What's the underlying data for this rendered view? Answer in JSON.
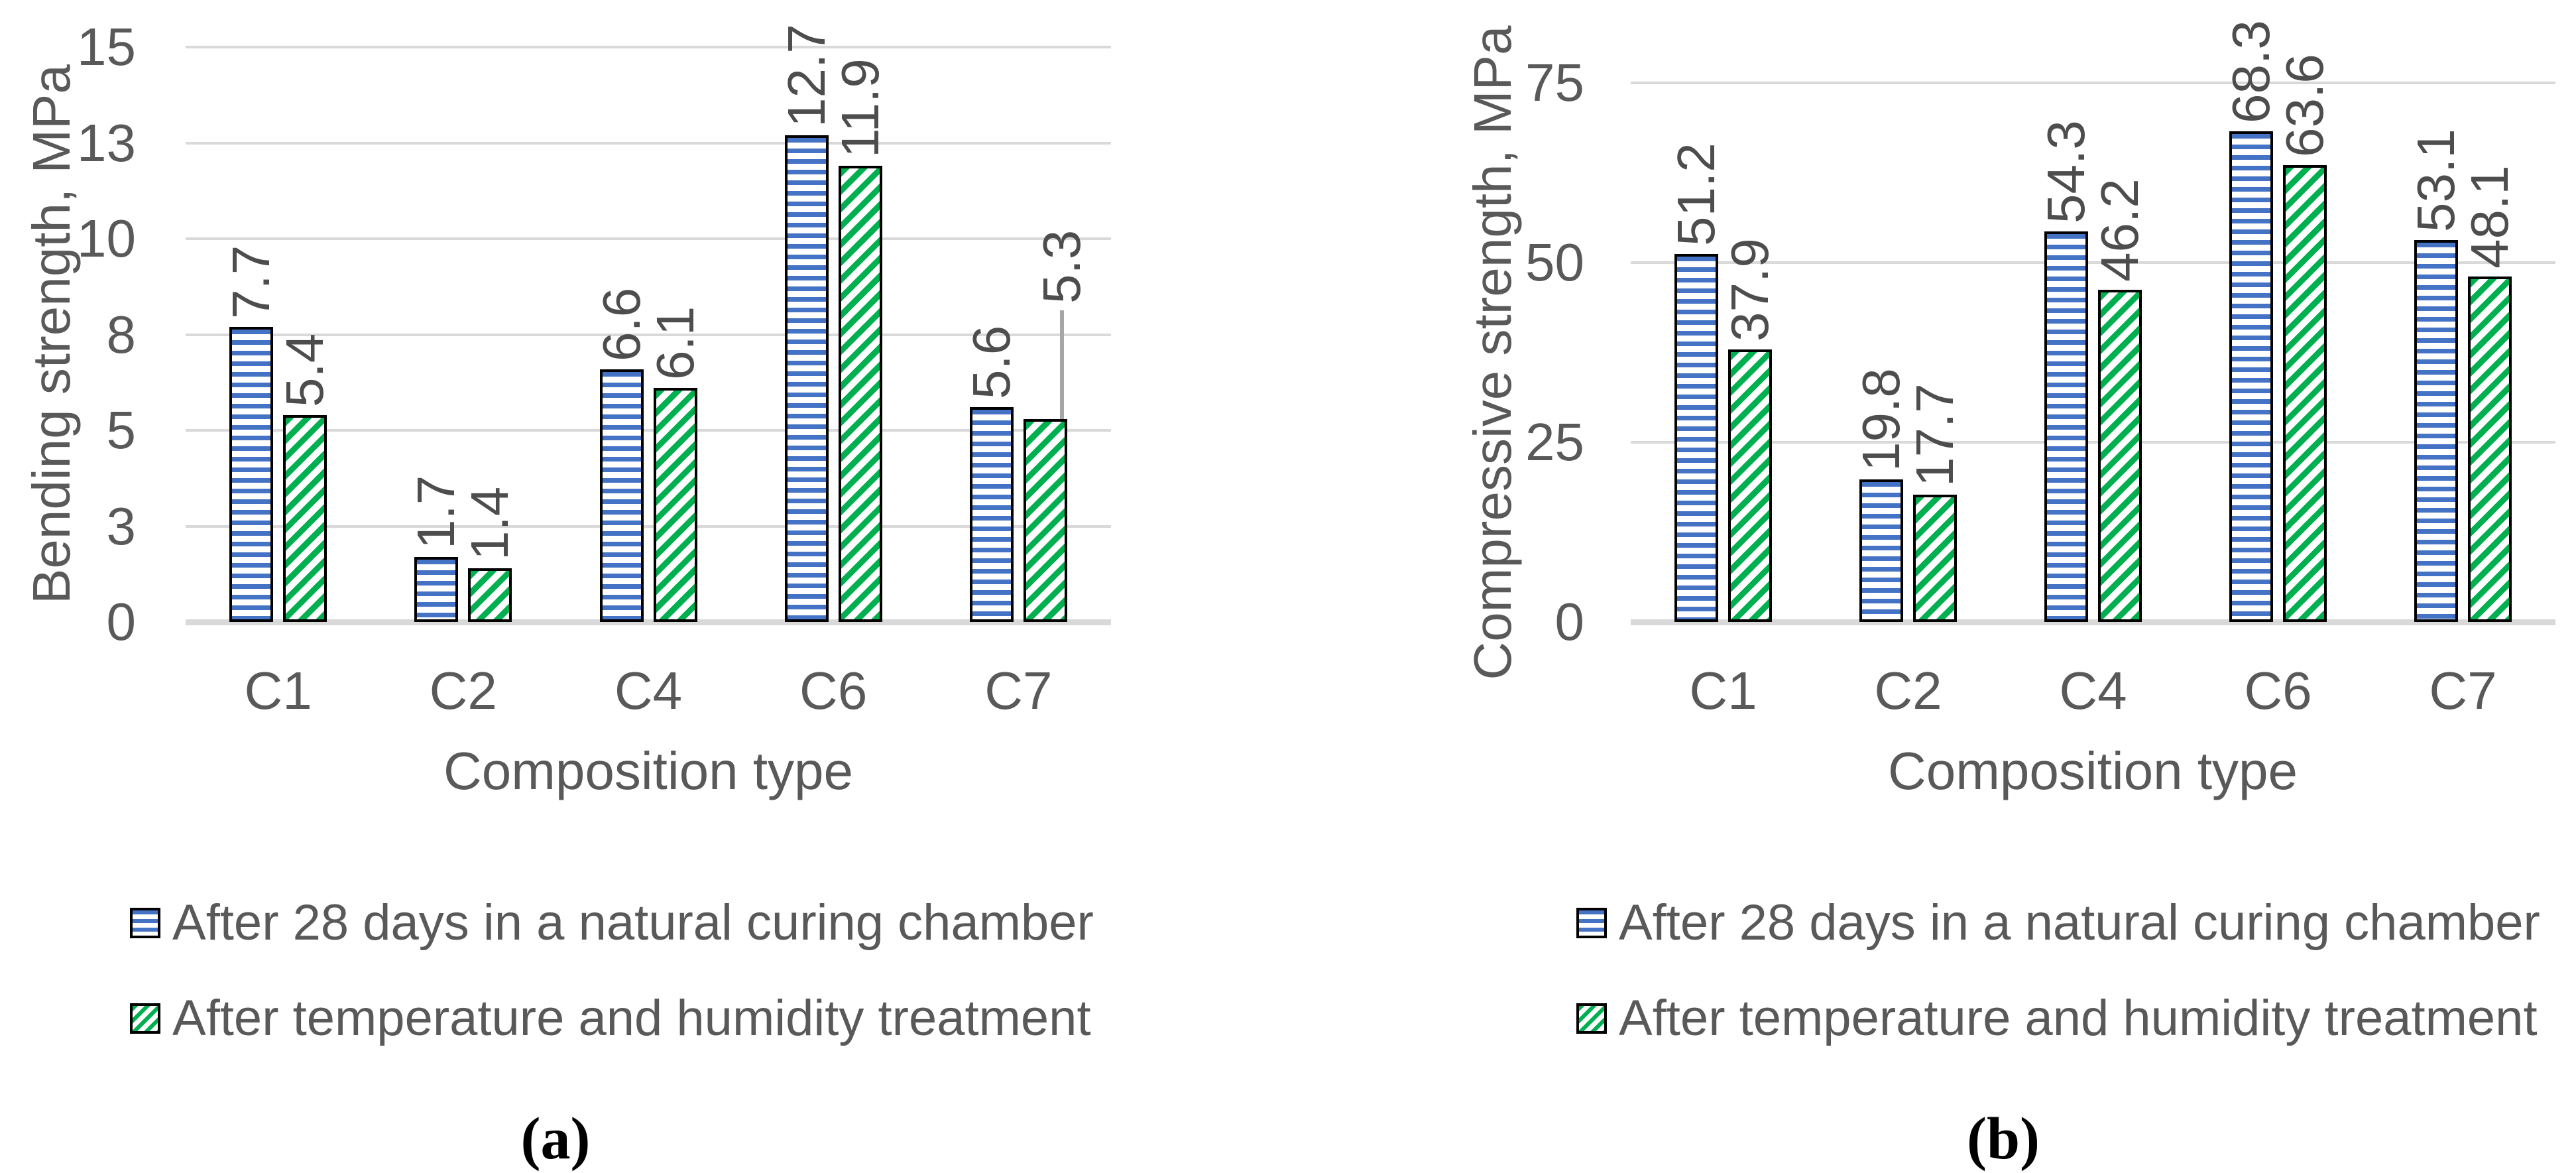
{
  "figure": {
    "panels": [
      {
        "caption": "(a)",
        "y_axis_title": "Bending strength, MPa",
        "x_axis_title": "Composition type",
        "legend": [
          {
            "label": "After 28 days in a natural curing chamber",
            "pattern": "horizontal-stripes",
            "color": "#4472C4"
          },
          {
            "label": "After temperature and humidity treatment",
            "pattern": "diagonal-stripes",
            "color": "#00B050"
          }
        ]
      },
      {
        "caption": "(b)",
        "y_axis_title": "Compressive strength, MPa",
        "x_axis_title": "Composition type",
        "legend": [
          {
            "label": "After 28 days in a natural curing chamber",
            "pattern": "horizontal-stripes",
            "color": "#4472C4"
          },
          {
            "label": "After temperature and humidity treatment",
            "pattern": "diagonal-stripes",
            "color": "#00B050"
          }
        ]
      }
    ]
  },
  "chart_data": [
    {
      "type": "bar",
      "panel": "a",
      "title": "",
      "xlabel": "Composition type",
      "ylabel": "Bending strength, MPa",
      "categories": [
        "C1",
        "C2",
        "C4",
        "C6",
        "C7"
      ],
      "series": [
        {
          "name": "After 28 days in a natural curing chamber",
          "values": [
            7.7,
            1.7,
            6.6,
            12.7,
            5.6
          ]
        },
        {
          "name": "After temperature and humidity treatment",
          "values": [
            5.4,
            1.4,
            6.1,
            11.9,
            5.3
          ]
        }
      ],
      "ylim": [
        0,
        15
      ],
      "ytick_values": [
        0,
        2.5,
        5,
        7.5,
        10,
        12.5,
        15
      ],
      "ytick_labels": [
        "0",
        "3",
        "5",
        "8",
        "10",
        "13",
        "15"
      ],
      "grid": "horizontal",
      "legend_position": "below-left",
      "data_labels": "one-decimal, rotated 90° CCW above bars",
      "annotation_leader_line": {
        "series_index": 1,
        "category_index": 4,
        "label": "5.3"
      }
    },
    {
      "type": "bar",
      "panel": "b",
      "title": "",
      "xlabel": "Composition type",
      "ylabel": "Compressive strength, MPa",
      "categories": [
        "C1",
        "C2",
        "C4",
        "C6",
        "C7"
      ],
      "series": [
        {
          "name": "After 28 days in a natural curing chamber",
          "values": [
            51.2,
            19.8,
            54.3,
            68.3,
            53.1
          ]
        },
        {
          "name": "After temperature and humidity treatment",
          "values": [
            37.9,
            17.7,
            46.2,
            63.6,
            48.1
          ]
        }
      ],
      "ylim": [
        0,
        75
      ],
      "ytick_values": [
        0,
        25,
        50,
        75
      ],
      "ytick_labels": [
        "0",
        "25",
        "50",
        "75"
      ],
      "grid": "horizontal",
      "legend_position": "below-left",
      "data_labels": "one-decimal, rotated 90° CCW above bars",
      "annotation_leader_line": null
    }
  ],
  "styles": {
    "series_colors": [
      "#4472C4",
      "#00B050"
    ],
    "axis_text_color": "#595959",
    "data_label_color": "#4D4D4D",
    "gridline_color": "#D9D9D9",
    "leader_line_color": "#A6A6A6",
    "bar_border_color": "#000000",
    "background": "#FFFFFF"
  }
}
